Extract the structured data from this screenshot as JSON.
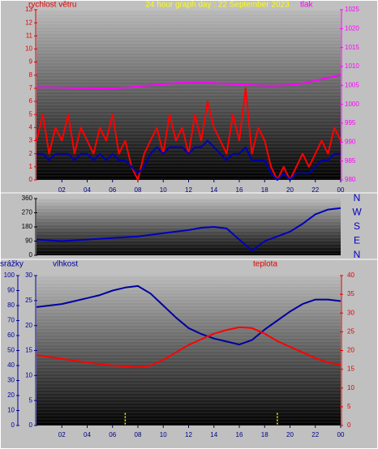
{
  "chart_data": [
    {
      "type": "line",
      "title": "24 hour graph day : 22 September 2023",
      "y_label": "rychlost větru",
      "y2_label": "tlak",
      "xlim": [
        0,
        24
      ],
      "xticks": [
        {
          "value": 2,
          "label": "02"
        },
        {
          "value": 4,
          "label": "04"
        },
        {
          "value": 6,
          "label": "06"
        },
        {
          "value": 8,
          "label": "08"
        },
        10,
        12,
        14,
        16,
        18,
        20,
        22,
        {
          "value": 24,
          "label": "00"
        }
      ],
      "ylim": [
        0,
        13
      ],
      "yticks": [
        0,
        1,
        2,
        3,
        4,
        5,
        6,
        7,
        8,
        9,
        10,
        11,
        12,
        13
      ],
      "y2lim": [
        980,
        1025
      ],
      "y2ticks": [
        980,
        985,
        990,
        995,
        1000,
        1005,
        1010,
        1015,
        1020,
        1025
      ],
      "series": [
        {
          "color": "#ff0000",
          "x": [
            0,
            0.5,
            1,
            1.5,
            2,
            2.5,
            3,
            3.5,
            4,
            4.5,
            5,
            5.5,
            6,
            6.5,
            7,
            7.5,
            8,
            8.5,
            9,
            9.5,
            10,
            10.5,
            11,
            11.5,
            12,
            12.5,
            13,
            13.5,
            14,
            14.5,
            15,
            15.5,
            16,
            16.5,
            17,
            17.5,
            18,
            18.5,
            19,
            19.5,
            20,
            20.5,
            21,
            21.5,
            22,
            22.5,
            23,
            23.5,
            24
          ],
          "values": [
            3,
            5,
            2,
            4,
            3,
            5,
            2,
            4,
            3,
            2,
            4,
            3,
            5,
            2,
            3,
            1,
            0,
            2,
            3,
            4,
            2,
            5,
            3,
            4,
            2,
            5,
            3,
            6,
            4,
            3,
            2,
            5,
            3,
            7,
            2,
            4,
            3,
            1,
            0,
            1,
            0,
            1,
            2,
            1,
            2,
            3,
            2,
            4,
            3
          ]
        },
        {
          "color": "#0000b0",
          "x": [
            0,
            0.5,
            1,
            1.5,
            2,
            2.5,
            3,
            3.5,
            4,
            4.5,
            5,
            5.5,
            6,
            6.5,
            7,
            7.5,
            8,
            8.5,
            9,
            9.5,
            10,
            10.5,
            11,
            11.5,
            12,
            12.5,
            13,
            13.5,
            14,
            14.5,
            15,
            15.5,
            16,
            16.5,
            17,
            17.5,
            18,
            18.5,
            19,
            19.5,
            20,
            20.5,
            21,
            21.5,
            22,
            22.5,
            23,
            23.5,
            24
          ],
          "values": [
            2,
            2,
            1.5,
            2,
            2,
            2,
            1.5,
            2,
            2,
            1.5,
            2,
            1.5,
            2,
            1.5,
            1.5,
            1,
            0.5,
            1,
            2,
            2.5,
            2,
            2.5,
            2.5,
            2.5,
            2,
            2.5,
            2.5,
            3,
            2.5,
            2,
            1.5,
            2,
            2,
            2.5,
            1.5,
            1.5,
            1.5,
            0.5,
            0,
            0.5,
            0,
            0.5,
            0.5,
            0.5,
            1,
            1.5,
            1.5,
            2,
            2
          ]
        },
        {
          "color": "#ff00ff",
          "axis": "y2",
          "x": [
            0,
            1,
            2,
            3,
            4,
            5,
            6,
            7,
            8,
            9,
            10,
            11,
            12,
            13,
            14,
            15,
            16,
            17,
            18,
            19,
            20,
            21,
            22,
            23,
            24
          ],
          "values": [
            1004.5,
            1004.5,
            1004.4,
            1004.3,
            1004.3,
            1004.2,
            1004.2,
            1004.4,
            1004.7,
            1005,
            1005.3,
            1005.6,
            1005.8,
            1005.8,
            1005.6,
            1005.4,
            1005.3,
            1005.1,
            1004.9,
            1004.9,
            1005.1,
            1005.5,
            1006.3,
            1007,
            1007.8
          ]
        }
      ]
    },
    {
      "type": "line",
      "xlim": [
        0,
        24
      ],
      "ylim": [
        0,
        360
      ],
      "yticks": [
        0,
        90,
        180,
        270,
        360
      ],
      "y2lim": [
        0,
        360
      ],
      "y2ticks": [
        {
          "value": 0,
          "label": "N"
        },
        {
          "value": 90,
          "label": "E"
        },
        {
          "value": 180,
          "label": "S"
        },
        {
          "value": 270,
          "label": "W"
        },
        {
          "value": 360,
          "label": "N"
        }
      ],
      "series": [
        {
          "color": "#0000c0",
          "x": [
            0,
            1,
            2,
            3,
            4,
            5,
            6,
            7,
            8,
            9,
            10,
            11,
            12,
            13,
            14,
            15,
            16,
            17,
            18,
            19,
            20,
            21,
            22,
            23,
            24
          ],
          "values": [
            100,
            95,
            90,
            95,
            100,
            105,
            110,
            115,
            120,
            130,
            140,
            150,
            160,
            175,
            180,
            170,
            100,
            30,
            90,
            120,
            150,
            200,
            260,
            290,
            300
          ]
        }
      ]
    },
    {
      "type": "line",
      "y_label": "srážky",
      "y3_label": "vlhkost",
      "y2_label": "teplota",
      "xlim": [
        0,
        24
      ],
      "xticks": [
        {
          "value": 2,
          "label": "02"
        },
        {
          "value": 4,
          "label": "04"
        },
        {
          "value": 6,
          "label": "06"
        },
        {
          "value": 8,
          "label": "08"
        },
        10,
        12,
        14,
        16,
        18,
        20,
        22,
        {
          "value": 24,
          "label": "00"
        }
      ],
      "ylim": [
        0,
        100
      ],
      "yticks": [
        0,
        10,
        20,
        30,
        40,
        50,
        60,
        70,
        80,
        90,
        100
      ],
      "y3lim": [
        0,
        30
      ],
      "y3ticks": [
        0,
        5,
        10,
        15,
        20,
        25,
        30
      ],
      "y2lim": [
        0,
        40
      ],
      "y2ticks": [
        0,
        5,
        10,
        15,
        20,
        25,
        30,
        35,
        40
      ],
      "series": [
        {
          "color": "#0000a0",
          "x": [
            0,
            1,
            2,
            3,
            4,
            5,
            6,
            7,
            8,
            9,
            10,
            11,
            12,
            13,
            14,
            15,
            16,
            17,
            18,
            19,
            20,
            21,
            22,
            23,
            24
          ],
          "values": [
            79,
            80,
            81,
            83,
            85,
            87,
            90,
            92,
            93,
            88,
            80,
            72,
            65,
            61,
            58,
            56,
            54,
            57,
            64,
            70,
            76,
            81,
            84,
            84,
            83
          ]
        },
        {
          "color": "#ff0000",
          "axis": "y2",
          "x": [
            0,
            1,
            2,
            3,
            4,
            5,
            6,
            7,
            8,
            9,
            10,
            11,
            12,
            13,
            14,
            15,
            16,
            17,
            18,
            19,
            20,
            21,
            22,
            23,
            24
          ],
          "values": [
            18.8,
            18.3,
            17.8,
            17.3,
            16.8,
            16.4,
            16,
            15.8,
            15.5,
            16,
            17.5,
            19.5,
            21.5,
            23,
            24.5,
            25.5,
            26.2,
            26,
            24.5,
            22.5,
            21,
            19.5,
            18,
            16.8,
            16.2
          ]
        },
        {
          "type": "bar",
          "color": "#ffff00",
          "axis": "y3",
          "x": [
            7,
            19
          ],
          "values": [
            2.5,
            2.5
          ]
        }
      ]
    }
  ]
}
